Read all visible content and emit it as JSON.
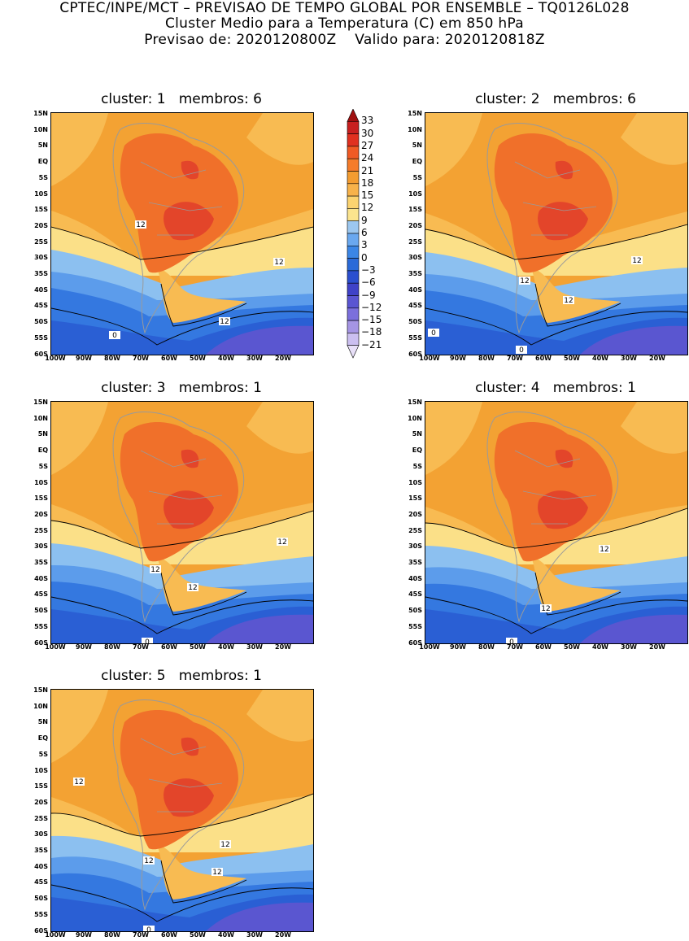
{
  "header": {
    "line1": "CPTEC/INPE/MCT – PREVISAO DE TEMPO GLOBAL POR ENSEMBLE – TQ0126L028",
    "line2": "Cluster Medio para a Temperatura (C) em 850 hPa",
    "line3": "Previsao de: 2020120800Z    Valido para: 2020120818Z"
  },
  "panels": [
    {
      "title": "cluster: 1   membros: 6",
      "contour_labels": [
        "12",
        "12",
        "12",
        "0"
      ]
    },
    {
      "title": "cluster: 2   membros: 6",
      "contour_labels": [
        "12",
        "12",
        "12",
        "0",
        "0"
      ]
    },
    {
      "title": "cluster: 3   membros: 1",
      "contour_labels": [
        "12",
        "12",
        "12",
        "0"
      ]
    },
    {
      "title": "cluster: 4   membros: 1",
      "contour_labels": [
        "12",
        "12",
        "0"
      ]
    },
    {
      "title": "cluster: 5   membros: 1",
      "contour_labels": [
        "12",
        "12",
        "12",
        "12",
        "0"
      ]
    }
  ],
  "lat_ticks": [
    "15N",
    "10N",
    "5N",
    "EQ",
    "5S",
    "10S",
    "15S",
    "20S",
    "25S",
    "30S",
    "35S",
    "40S",
    "45S",
    "50S",
    "55S",
    "60S"
  ],
  "lon_ticks": [
    "100W",
    "90W",
    "80W",
    "70W",
    "60W",
    "50W",
    "40W",
    "30W",
    "20W"
  ],
  "colorbar": {
    "labels": [
      "33",
      "30",
      "27",
      "24",
      "21",
      "18",
      "15",
      "12",
      "9",
      "6",
      "3",
      "0",
      "−3",
      "−6",
      "−9",
      "−12",
      "−15",
      "−18",
      "−21"
    ],
    "colors": [
      "#a01010",
      "#c82020",
      "#e03020",
      "#f05a24",
      "#f57c2a",
      "#f39c30",
      "#f7b24a",
      "#fbd370",
      "#fbe48e",
      "#9cc7ef",
      "#6aa8ef",
      "#3b86e6",
      "#2a6ad8",
      "#2b4fcf",
      "#3f42c8",
      "#5a55d2",
      "#7b6fdc",
      "#a595e4",
      "#cbbff0",
      "#e8e0f8"
    ]
  },
  "colors": {
    "orange": "#f3a233",
    "light_orange": "#f8bb52",
    "red_orange": "#f0702a",
    "red": "#e3452a",
    "yellow": "#fbe088",
    "light_blue": "#8cc0f0",
    "mid_blue": "#5c9ceb",
    "blue": "#3478e0",
    "deep_blue": "#2a5fd4",
    "indigo": "#5a56d0",
    "land_border": "#9a9a9a"
  }
}
